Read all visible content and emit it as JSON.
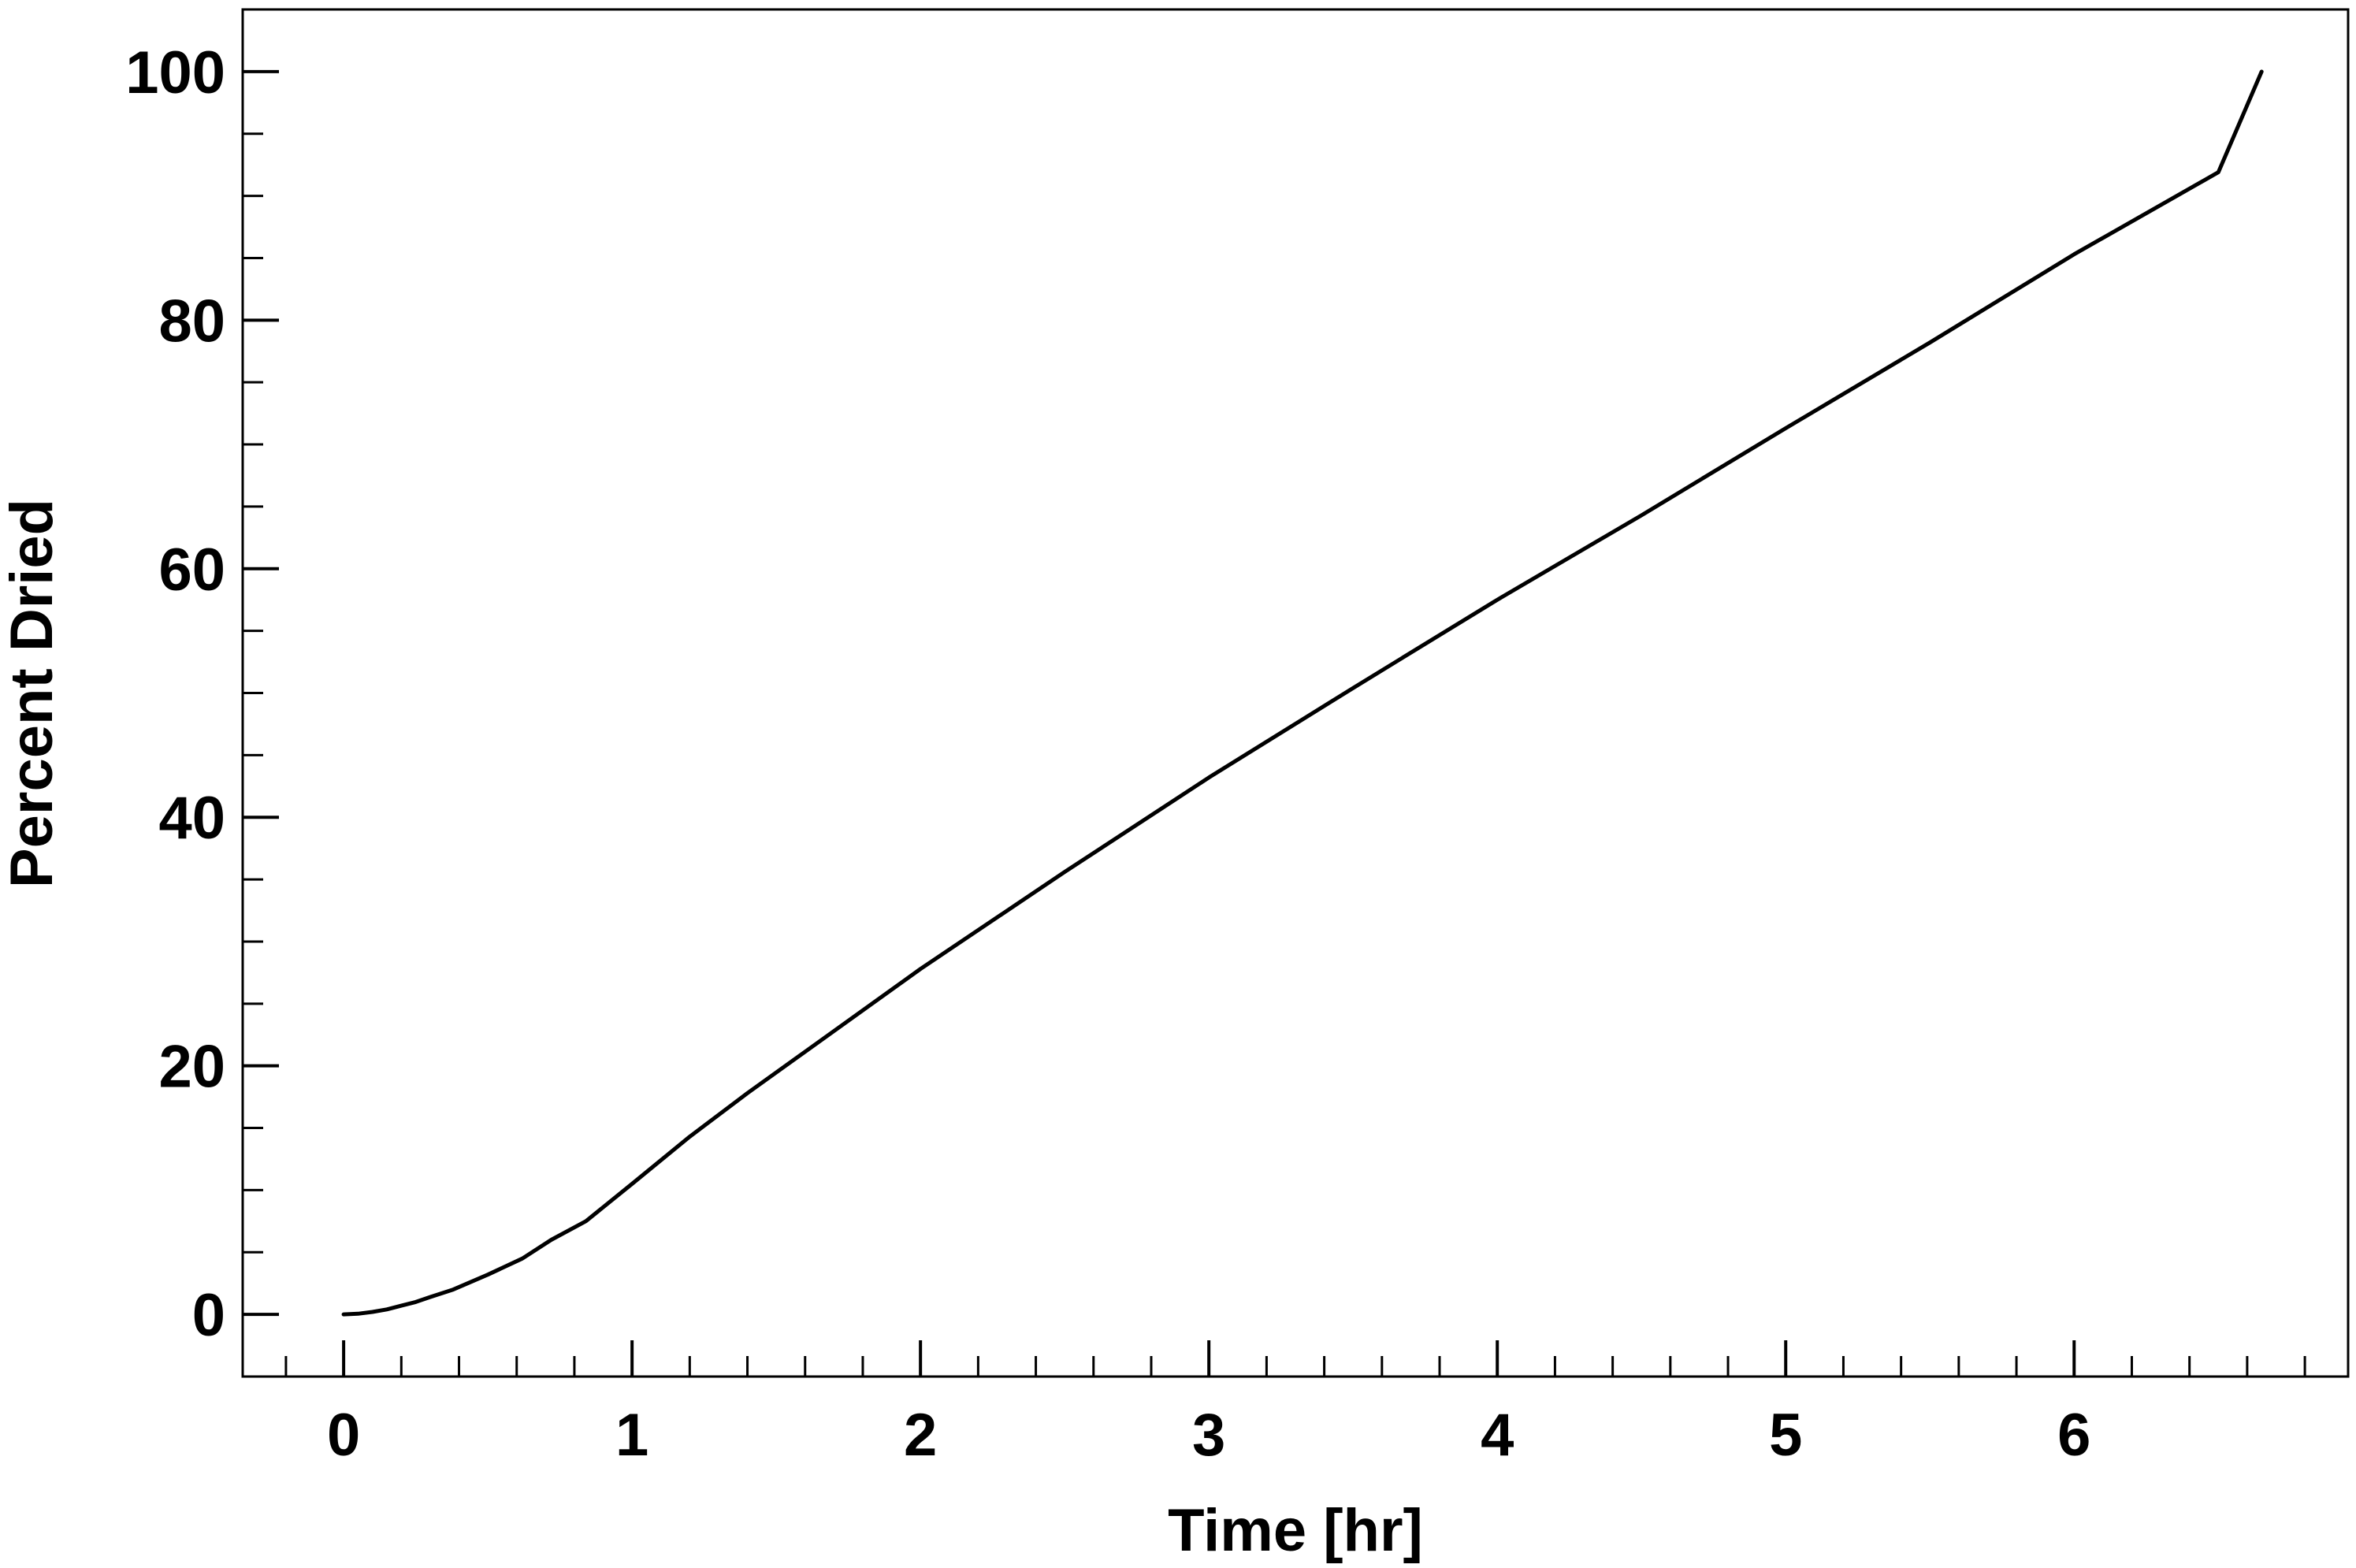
{
  "chart_data": {
    "type": "line",
    "title": "",
    "xlabel": "Time [hr]",
    "ylabel": "Percent Dried",
    "xlim": [
      -0.35,
      6.95
    ],
    "ylim": [
      -5,
      105
    ],
    "x_ticks": [
      0,
      1,
      2,
      3,
      4,
      5,
      6
    ],
    "x_tick_labels": [
      "0",
      "1",
      "2",
      "3",
      "4",
      "5",
      "6"
    ],
    "x_minor_step": 0.2,
    "y_ticks": [
      0,
      20,
      40,
      60,
      80,
      100
    ],
    "y_tick_labels": [
      "0",
      "20",
      "40",
      "60",
      "80",
      "100"
    ],
    "y_minor_step": 5,
    "grid": false,
    "legend": "none",
    "series": [
      {
        "line_color": "#000000",
        "x": [
          0,
          0.05,
          0.1,
          0.15,
          0.2,
          0.25,
          0.3,
          0.38,
          0.5,
          0.62,
          0.72,
          0.84,
          1.0,
          1.2,
          1.4,
          1.7,
          2.0,
          2.5,
          3.0,
          3.5,
          4.0,
          4.5,
          5.0,
          5.5,
          6.0,
          6.5,
          6.65
        ],
        "y": [
          0,
          0.05,
          0.2,
          0.4,
          0.7,
          1.0,
          1.4,
          2.0,
          3.2,
          4.5,
          6.0,
          7.5,
          10.5,
          14.3,
          17.8,
          22.8,
          27.8,
          35.6,
          43.2,
          50.4,
          57.5,
          64.3,
          71.3,
          78.2,
          85.3,
          91.9,
          100
        ]
      }
    ]
  }
}
